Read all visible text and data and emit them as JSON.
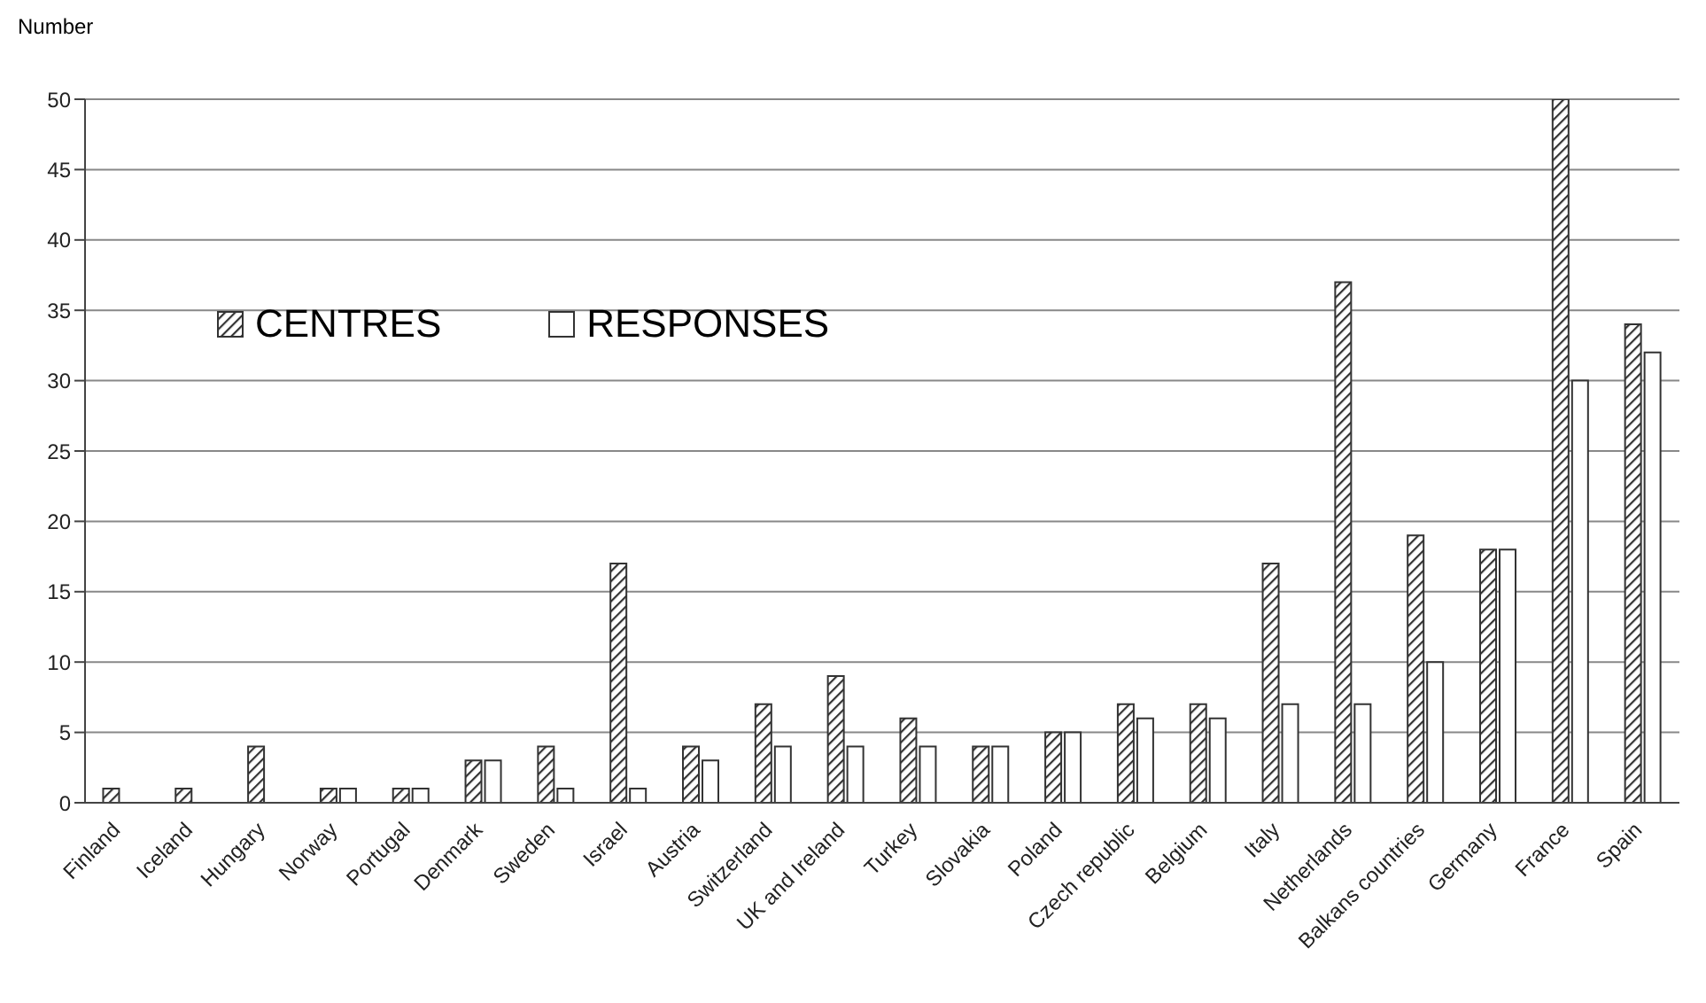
{
  "chart_data": {
    "type": "bar",
    "ylabel": "Number",
    "categories": [
      "Finland",
      "Iceland",
      "Hungary",
      "Norway",
      "Portugal",
      "Denmark",
      "Sweden",
      "Israel",
      "Austria",
      "Switzerland",
      "UK and Ireland",
      "Turkey",
      "Slovakia",
      "Poland",
      "Czech republic",
      "Belgium",
      "Italy",
      "Netherlands",
      "Balkans countries",
      "Germany",
      "France",
      "Spain"
    ],
    "series": [
      {
        "name": "CENTRES",
        "color": "#333333",
        "values": [
          1,
          1,
          4,
          1,
          1,
          3,
          4,
          17,
          4,
          7,
          9,
          6,
          4,
          5,
          7,
          7,
          17,
          37,
          19,
          18,
          50,
          34
        ]
      },
      {
        "name": "RESPONSES",
        "color": "#ffffff",
        "values": [
          0,
          0,
          0,
          1,
          1,
          3,
          1,
          1,
          3,
          4,
          4,
          4,
          4,
          5,
          6,
          6,
          7,
          7,
          10,
          18,
          30,
          32
        ]
      }
    ],
    "ylim": [
      0,
      50
    ],
    "yticks": [
      0,
      5,
      10,
      15,
      20,
      25,
      30,
      35,
      40,
      45,
      50
    ],
    "grid": "y",
    "legend": "left"
  }
}
